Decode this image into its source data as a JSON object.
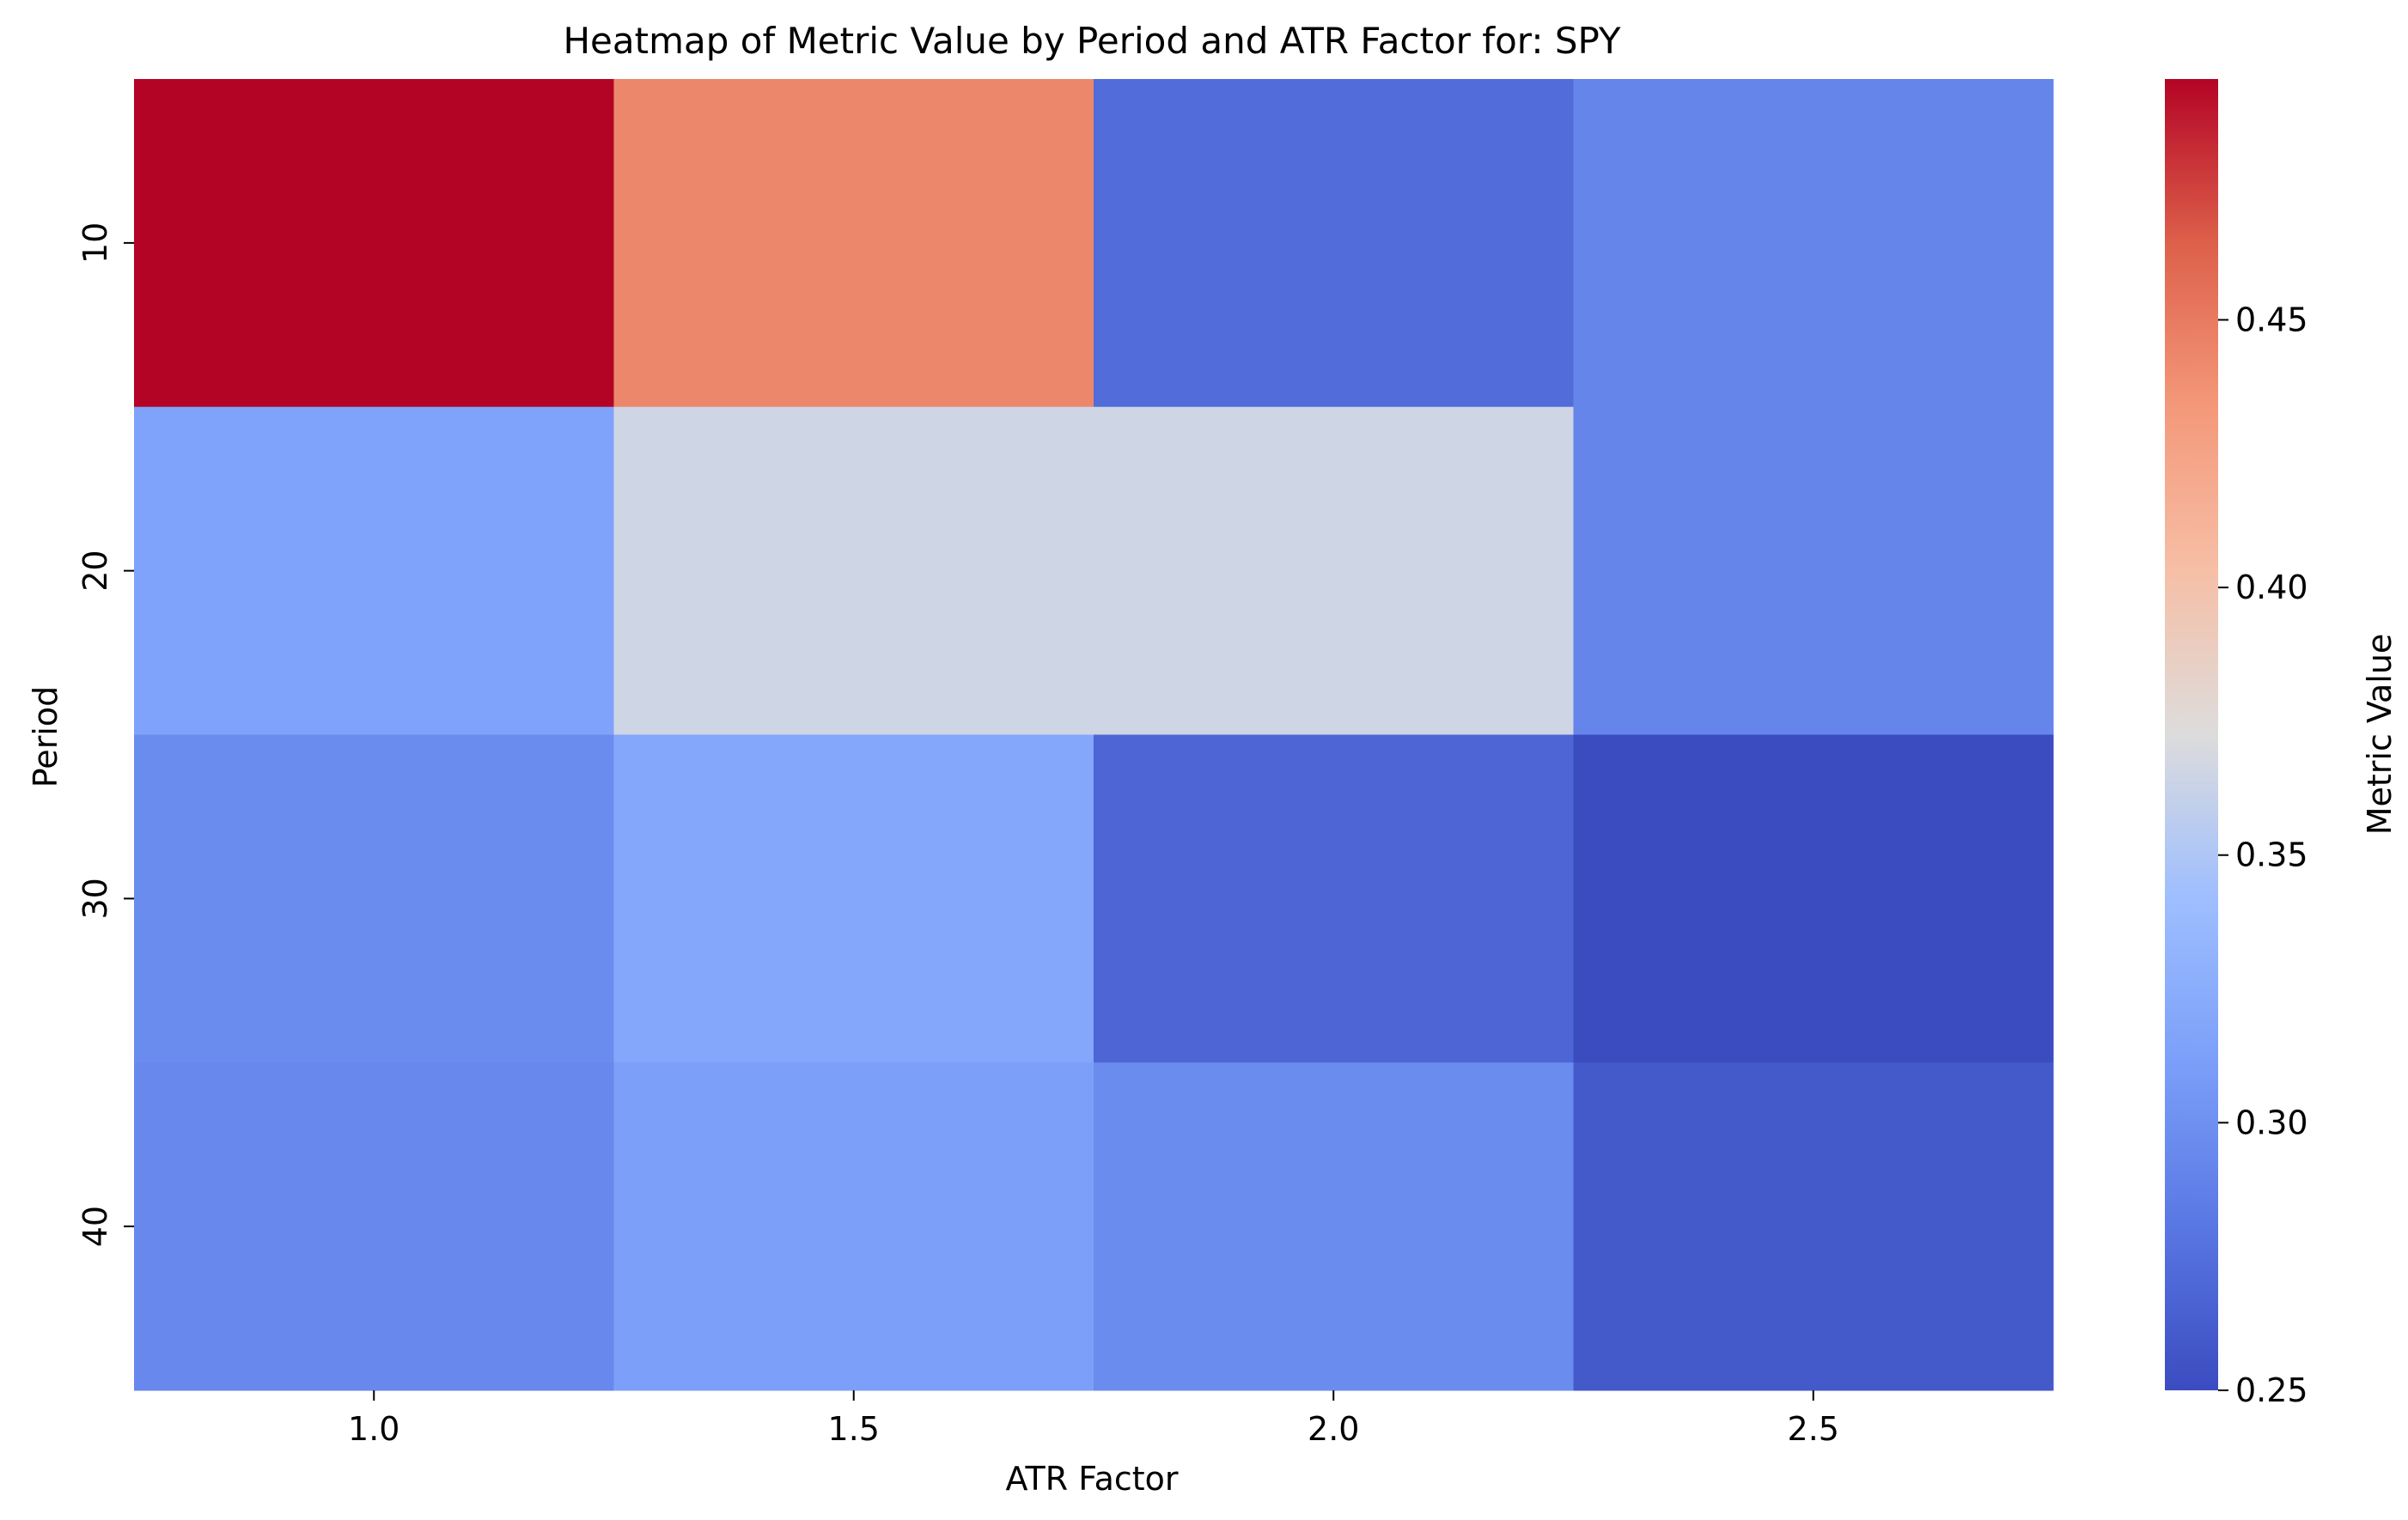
{
  "chart_data": {
    "type": "heatmap",
    "title": "Heatmap of Metric Value by Period and ATR Factor for: SPY",
    "xlabel": "ATR Factor",
    "ylabel": "Period",
    "x_categories": [
      "1.0",
      "1.5",
      "2.0",
      "2.5"
    ],
    "y_categories": [
      "10",
      "20",
      "30",
      "40"
    ],
    "values": [
      [
        0.495,
        0.443,
        0.273,
        0.291
      ],
      [
        0.315,
        0.365,
        0.365,
        0.291
      ],
      [
        0.297,
        0.319,
        0.268,
        0.25
      ],
      [
        0.294,
        0.312,
        0.297,
        0.259
      ]
    ],
    "colorbar": {
      "label": "Metric Value",
      "range": [
        0.25,
        0.495
      ],
      "ticks": [
        "0.25",
        "0.30",
        "0.35",
        "0.40",
        "0.45"
      ],
      "colormap": "coolwarm"
    },
    "grid": false
  }
}
